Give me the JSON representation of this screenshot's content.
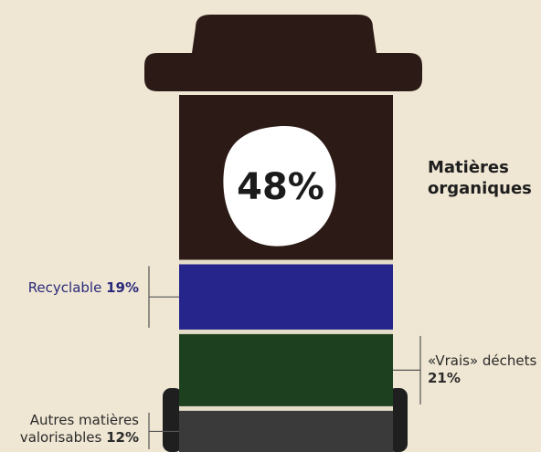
{
  "chart_data": {
    "type": "bin",
    "categories": [
      "Matières organiques",
      "Recyclable",
      "«Vrais» déchets",
      "Autres matières valorisables"
    ],
    "values": [
      48,
      19,
      21,
      12
    ],
    "value_labels": [
      "48%",
      "19%",
      "21%",
      "12%"
    ],
    "colors": [
      "#2c1a16",
      "#25258c",
      "#1d401e",
      "#3a3a3a"
    ]
  }
}
